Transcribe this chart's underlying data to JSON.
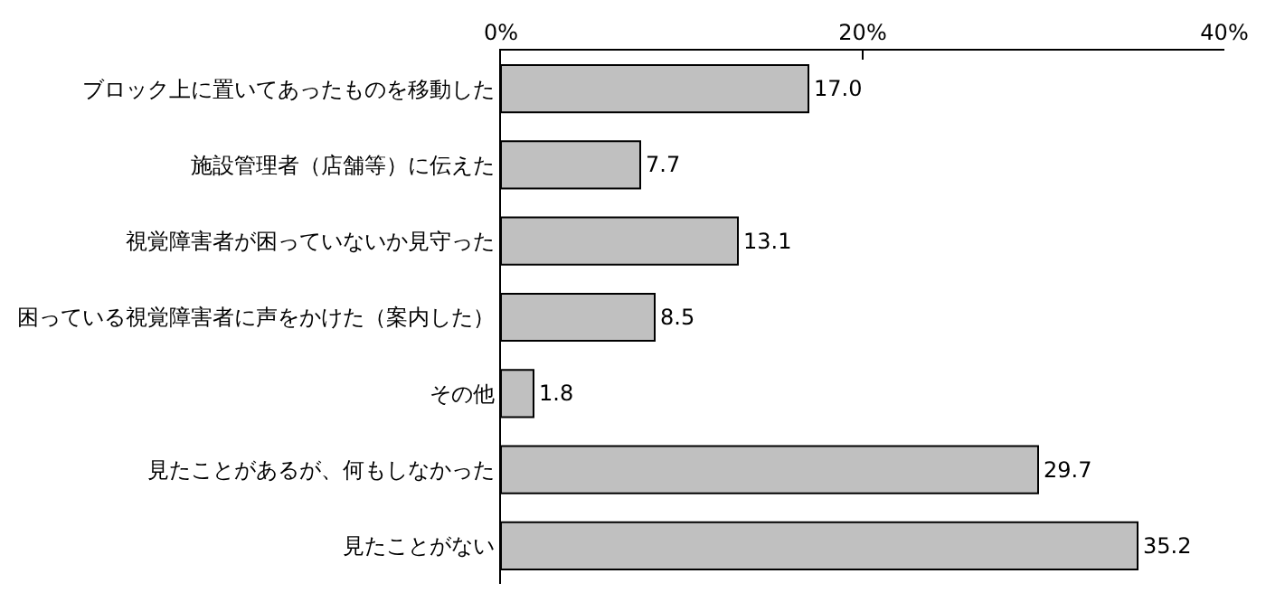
{
  "chart_data": {
    "type": "bar",
    "orientation": "horizontal",
    "categories": [
      "ブロック上に置いてあったものを移動した",
      "施設管理者（店舗等）に伝えた",
      "視覚障害者が困っていないか見守った",
      "困っている視覚障害者に声をかけた（案内した）",
      "その他",
      "見たことがあるが、何もしなかった",
      "見たことがない"
    ],
    "values": [
      17.0,
      7.7,
      13.1,
      8.5,
      1.8,
      29.7,
      35.2
    ],
    "value_labels": [
      "17.0",
      "7.7",
      "13.1",
      "8.5",
      "1.8",
      "29.7",
      "35.2"
    ],
    "color": "#c0c0c0",
    "xlim": [
      0,
      40
    ],
    "xticks": [
      {
        "value": 0,
        "label": "0%"
      },
      {
        "value": 20,
        "label": "20%"
      },
      {
        "value": 40,
        "label": "40%"
      }
    ],
    "grid": false,
    "legend": false
  }
}
